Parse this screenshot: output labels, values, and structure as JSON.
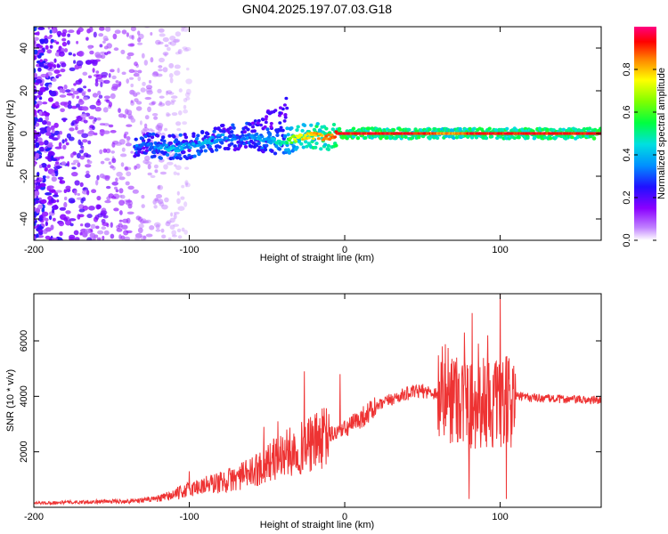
{
  "page": {
    "title": "GN04.2025.197.07.03.G18"
  },
  "chart_data": [
    {
      "type": "heatmap",
      "xlabel": "Height of straight line (km)",
      "ylabel": "Frequency (Hz)",
      "xlim": [
        -200,
        165
      ],
      "ylim": [
        -50,
        50
      ],
      "xticks": [
        -200,
        -100,
        0,
        100
      ],
      "xtick_labels": [
        "-200",
        "-100",
        "0",
        "100"
      ],
      "yticks": [
        -40,
        -20,
        0,
        20,
        40
      ],
      "ytick_labels": [
        "-40",
        "-20",
        "0",
        "20",
        "40"
      ],
      "colorbar": {
        "label": "Normalized spectral amplitude",
        "range": [
          0,
          1
        ],
        "ticks": [
          0,
          0.2,
          0.4,
          0.6,
          0.8
        ],
        "tick_labels": [
          "0.0",
          "0.2",
          "0.4",
          "0.6",
          "0.8"
        ]
      },
      "ridge": {
        "x": [
          -135,
          -120,
          -110,
          -100,
          -90,
          -80,
          -70,
          -60,
          -50,
          -40,
          -30,
          -20,
          -10,
          -5,
          0,
          20,
          50,
          60,
          70,
          80,
          90,
          100,
          120,
          165
        ],
        "y": [
          -6,
          -6,
          -7,
          -6,
          -4,
          -2,
          -2,
          -1,
          -3,
          -4,
          -2,
          -1,
          -2,
          0,
          0,
          0,
          0,
          0,
          0,
          0,
          0,
          0,
          0,
          0
        ],
        "amplitude": [
          0.35,
          0.4,
          0.45,
          0.4,
          0.45,
          0.4,
          0.35,
          0.4,
          0.45,
          0.5,
          0.8,
          0.85,
          0.9,
          0.95,
          0.97,
          0.97,
          0.97,
          0.9,
          0.85,
          0.95,
          0.97,
          0.97,
          0.97,
          0.97
        ]
      },
      "noise_region": {
        "x_range": [
          -200,
          -110
        ],
        "amplitude": [
          0.05,
          0.3
        ]
      }
    },
    {
      "type": "line",
      "xlabel": "Height of straight line (km)",
      "ylabel": "SNR (10 * v/v)",
      "xlim": [
        -200,
        165
      ],
      "ylim": [
        0,
        7700
      ],
      "xticks": [
        -200,
        -100,
        0,
        100
      ],
      "xtick_labels": [
        "-200",
        "-100",
        "0",
        "100"
      ],
      "yticks": [
        2000,
        4000,
        6000
      ],
      "ytick_labels": [
        "2000",
        "4000",
        "6000"
      ],
      "color": "#ee3333",
      "series": [
        {
          "x": [
            -200,
            -180,
            -160,
            -140,
            -120,
            -110,
            -100,
            -90,
            -80,
            -70,
            -60,
            -50,
            -40,
            -30,
            -20,
            -10,
            0,
            10,
            20,
            30,
            40,
            50,
            60,
            70,
            80,
            90,
            100,
            110,
            120,
            140,
            165
          ],
          "y": [
            150,
            180,
            200,
            220,
            300,
            450,
            650,
            800,
            900,
            1050,
            1250,
            1600,
            1900,
            2100,
            2300,
            2600,
            2800,
            3200,
            3600,
            3900,
            4100,
            4200,
            4100,
            4100,
            3700,
            3800,
            3600,
            4000,
            3950,
            3900,
            3850
          ],
          "spikes": [
            {
              "x": -100,
              "y": 1300
            },
            {
              "x": -52,
              "y": 2900
            },
            {
              "x": -43,
              "y": 3100
            },
            {
              "x": -26,
              "y": 4900
            },
            {
              "x": -18,
              "y": 3400
            },
            {
              "x": -3,
              "y": 4800
            },
            {
              "x": 72,
              "y": 5400
            },
            {
              "x": 77,
              "y": 6300
            },
            {
              "x": 80,
              "y": 300
            },
            {
              "x": 82,
              "y": 7000
            },
            {
              "x": 86,
              "y": 5900
            },
            {
              "x": 92,
              "y": 6200
            },
            {
              "x": 100,
              "y": 7700
            },
            {
              "x": 104,
              "y": 300
            },
            {
              "x": 108,
              "y": 5000
            }
          ]
        }
      ]
    }
  ]
}
